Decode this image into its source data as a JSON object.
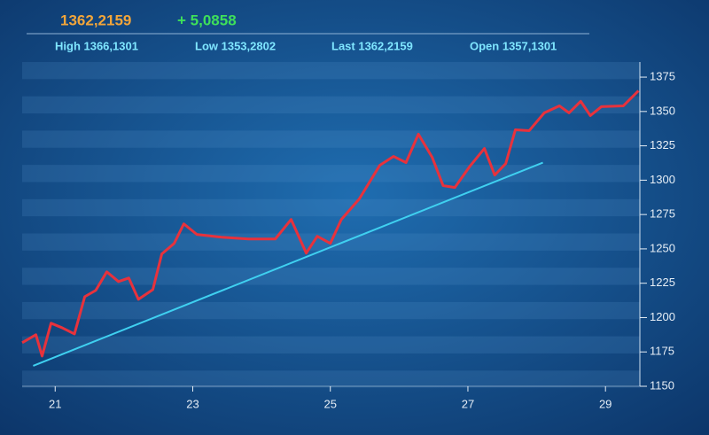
{
  "chart_data": {
    "type": "line",
    "price": "1362,2159",
    "change": "+ 5,0858",
    "stats": [
      "High 1366,1301",
      "Low 1353,2802",
      "Last 1362,2159",
      "Open 1357,1301"
    ],
    "series": [
      {
        "color": "#e8323c",
        "x": [
          20.52,
          20.72,
          20.81,
          20.94,
          21.1,
          21.28,
          21.43,
          21.59,
          21.75,
          21.92,
          22.07,
          22.21,
          22.42,
          22.55,
          22.73,
          22.87,
          23.06,
          23.42,
          23.81,
          24.2,
          24.43,
          24.65,
          24.81,
          25.0,
          25.16,
          25.42,
          25.72,
          25.92,
          26.1,
          26.28,
          26.48,
          26.64,
          26.81,
          27.03,
          27.24,
          27.39,
          27.55,
          27.69,
          27.89,
          28.11,
          28.33,
          28.47,
          28.64,
          28.78,
          28.94,
          29.26,
          29.48
        ],
        "values": [
          1181.7,
          1187.5,
          1172.0,
          1195.9,
          1192.6,
          1188.1,
          1215.2,
          1219.8,
          1233.3,
          1226.2,
          1228.8,
          1213.3,
          1220.4,
          1246.3,
          1254.0,
          1268.2,
          1260.5,
          1258.5,
          1257.2,
          1257.2,
          1271.4,
          1246.9,
          1259.2,
          1254.0,
          1271.4,
          1286.3,
          1310.9,
          1317.3,
          1312.8,
          1333.5,
          1316.7,
          1296.0,
          1294.7,
          1310.2,
          1323.1,
          1303.7,
          1312.1,
          1336.7,
          1336.0,
          1349.0,
          1354.1,
          1349.0,
          1357.4,
          1347.0,
          1353.5,
          1354.1,
          1365.1
        ]
      },
      {
        "color": "#3fd0f0",
        "x": [
          20.68,
          28.09
        ],
        "values": [
          1164.9,
          1312.8
        ]
      }
    ],
    "xlim": [
      20.52,
      29.5
    ],
    "xticks": [
      21,
      23,
      25,
      27,
      29
    ],
    "ylim": [
      1150,
      1386
    ],
    "yticks": [
      1150,
      1175,
      1200,
      1225,
      1250,
      1275,
      1300,
      1325,
      1350,
      1375
    ]
  }
}
